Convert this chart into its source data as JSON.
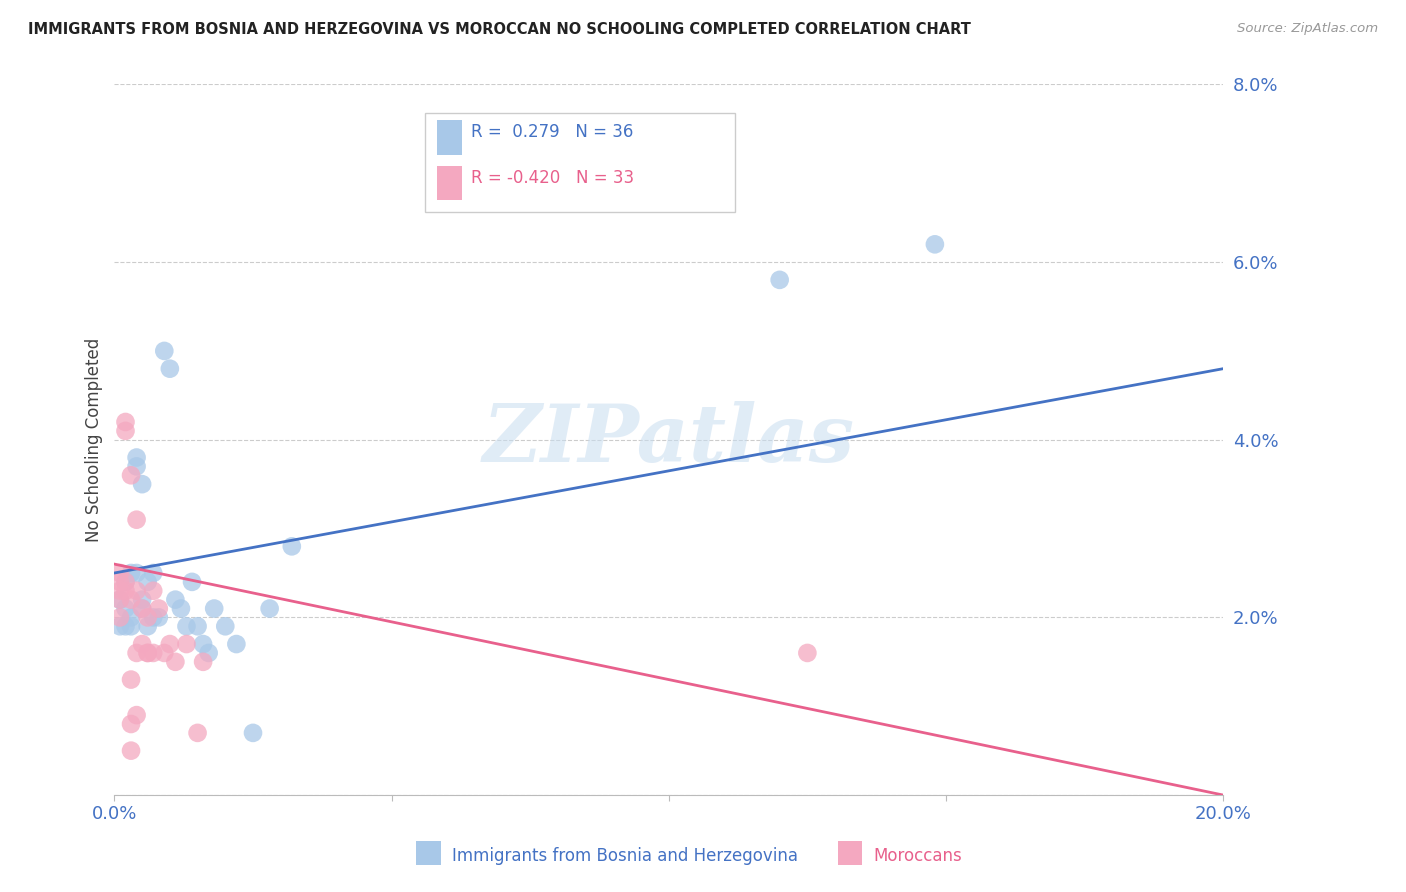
{
  "title": "IMMIGRANTS FROM BOSNIA AND HERZEGOVINA VS MOROCCAN NO SCHOOLING COMPLETED CORRELATION CHART",
  "source": "Source: ZipAtlas.com",
  "ylabel": "No Schooling Completed",
  "watermark": "ZIPatlas",
  "blue_R": 0.279,
  "blue_N": 36,
  "pink_R": -0.42,
  "pink_N": 33,
  "blue_label": "Immigrants from Bosnia and Herzegovina",
  "pink_label": "Moroccans",
  "blue_color": "#a8c8e8",
  "pink_color": "#f4a8c0",
  "blue_line_color": "#4472c4",
  "pink_line_color": "#e8608c",
  "yticks": [
    0.0,
    0.02,
    0.04,
    0.06,
    0.08
  ],
  "ytick_labels": [
    "",
    "2.0%",
    "4.0%",
    "6.0%",
    "8.0%"
  ],
  "xticks": [
    0.0,
    0.05,
    0.1,
    0.15,
    0.2
  ],
  "xtick_labels": [
    "0.0%",
    "",
    "",
    "",
    "20.0%"
  ],
  "xlim": [
    0.0,
    0.2
  ],
  "ylim": [
    0.0,
    0.08
  ],
  "blue_line_x0": 0.0,
  "blue_line_y0": 0.025,
  "blue_line_x1": 0.2,
  "blue_line_y1": 0.048,
  "pink_line_x0": 0.0,
  "pink_line_y0": 0.026,
  "pink_line_x1": 0.2,
  "pink_line_y1": 0.0,
  "blue_x": [
    0.001,
    0.001,
    0.002,
    0.002,
    0.002,
    0.003,
    0.003,
    0.003,
    0.004,
    0.004,
    0.004,
    0.005,
    0.005,
    0.005,
    0.006,
    0.006,
    0.007,
    0.007,
    0.008,
    0.009,
    0.01,
    0.011,
    0.012,
    0.013,
    0.014,
    0.015,
    0.016,
    0.017,
    0.018,
    0.02,
    0.022,
    0.025,
    0.028,
    0.032,
    0.12,
    0.148
  ],
  "blue_y": [
    0.022,
    0.019,
    0.024,
    0.021,
    0.019,
    0.025,
    0.02,
    0.019,
    0.038,
    0.037,
    0.025,
    0.035,
    0.022,
    0.021,
    0.024,
    0.019,
    0.025,
    0.02,
    0.02,
    0.05,
    0.048,
    0.022,
    0.021,
    0.019,
    0.024,
    0.019,
    0.017,
    0.016,
    0.021,
    0.019,
    0.017,
    0.007,
    0.021,
    0.028,
    0.058,
    0.062
  ],
  "pink_x": [
    0.001,
    0.001,
    0.001,
    0.001,
    0.001,
    0.002,
    0.002,
    0.002,
    0.002,
    0.003,
    0.003,
    0.003,
    0.004,
    0.004,
    0.004,
    0.005,
    0.005,
    0.006,
    0.006,
    0.007,
    0.007,
    0.008,
    0.009,
    0.01,
    0.011,
    0.013,
    0.015,
    0.016,
    0.125,
    0.003,
    0.006,
    0.004,
    0.003
  ],
  "pink_y": [
    0.025,
    0.024,
    0.023,
    0.022,
    0.02,
    0.042,
    0.041,
    0.024,
    0.023,
    0.036,
    0.022,
    0.013,
    0.031,
    0.023,
    0.016,
    0.021,
    0.017,
    0.02,
    0.016,
    0.023,
    0.016,
    0.021,
    0.016,
    0.017,
    0.015,
    0.017,
    0.007,
    0.015,
    0.016,
    0.005,
    0.016,
    0.009,
    0.008
  ]
}
